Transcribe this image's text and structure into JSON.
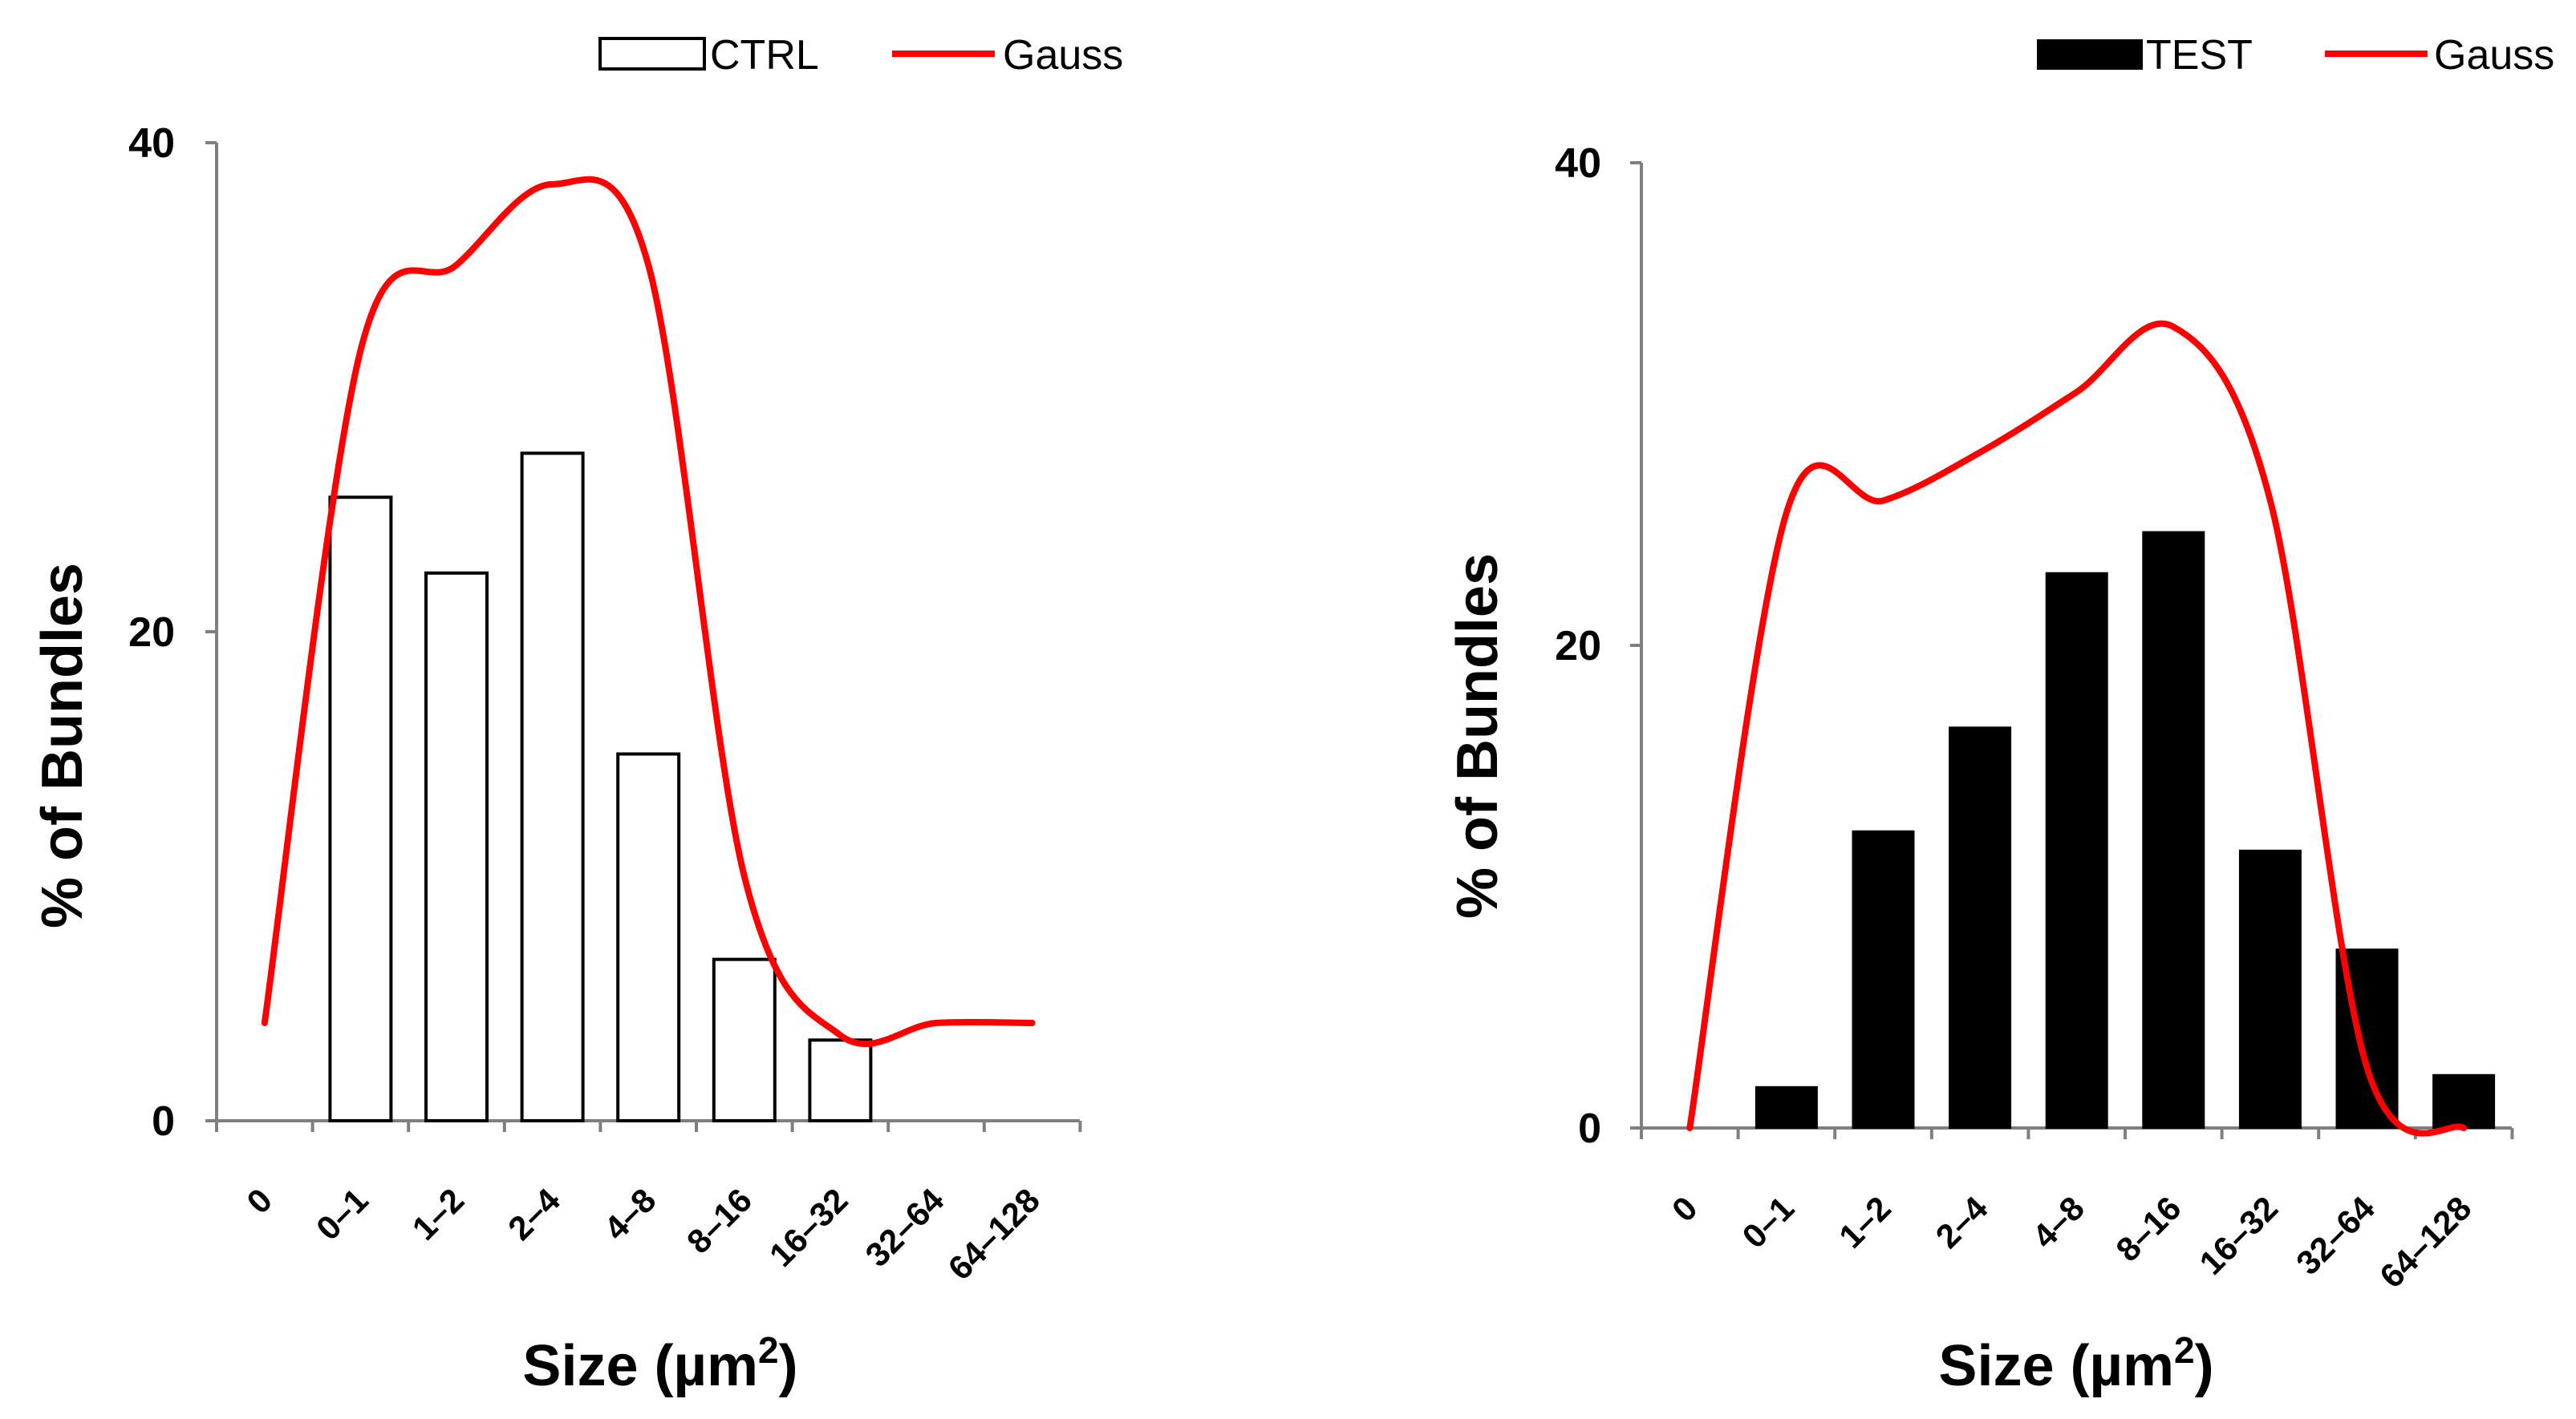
{
  "chart_data": [
    {
      "type": "bar",
      "title": "",
      "categories": [
        "0",
        "0–1",
        "1–2",
        "2–4",
        "4–8",
        "8–16",
        "16–32",
        "32–64",
        "64–128"
      ],
      "series": [
        {
          "name": "CTRL",
          "kind": "bar",
          "values": [
            0,
            25.5,
            22.4,
            27.3,
            15.0,
            6.6,
            3.3,
            0,
            0
          ]
        },
        {
          "name": "Gauss",
          "kind": "line",
          "values": [
            4.0,
            31.5,
            35.0,
            38.3,
            35.0,
            10.0,
            3.5,
            4.0,
            4.0
          ]
        }
      ],
      "xlabel_main": "Size (µm",
      "xlabel_sup": "2",
      "xlabel_end": ")",
      "ylabel": "% of Bundles",
      "ylim": [
        0,
        40
      ],
      "yticks": [
        "0",
        "20",
        "40"
      ],
      "legend": {
        "placement": "top",
        "bar_label": "CTRL",
        "line_label": "Gauss"
      },
      "bar_fill": "#ffffff",
      "line_color": "#ff0000"
    },
    {
      "type": "bar",
      "title": "",
      "categories": [
        "0",
        "0–1",
        "1–2",
        "2–4",
        "4–8",
        "8–16",
        "16–32",
        "32–64",
        "64–128"
      ],
      "series": [
        {
          "name": "TEST",
          "kind": "bar",
          "values": [
            0,
            1.7,
            12.3,
            16.6,
            23.0,
            24.7,
            11.5,
            7.4,
            2.2
          ]
        },
        {
          "name": "Gauss",
          "kind": "line",
          "values": [
            0,
            25.5,
            26.0,
            28.0,
            30.5,
            33.2,
            26.0,
            2.5,
            0
          ]
        }
      ],
      "xlabel_main": "Size (µm",
      "xlabel_sup": "2",
      "xlabel_end": ")",
      "ylabel": "% of Bundles",
      "ylim": [
        0,
        40
      ],
      "yticks": [
        "0",
        "20",
        "40"
      ],
      "legend": {
        "placement": "top-right",
        "bar_label": "TEST",
        "line_label": "Gauss"
      },
      "bar_fill": "#000000",
      "line_color": "#ff0000"
    }
  ]
}
